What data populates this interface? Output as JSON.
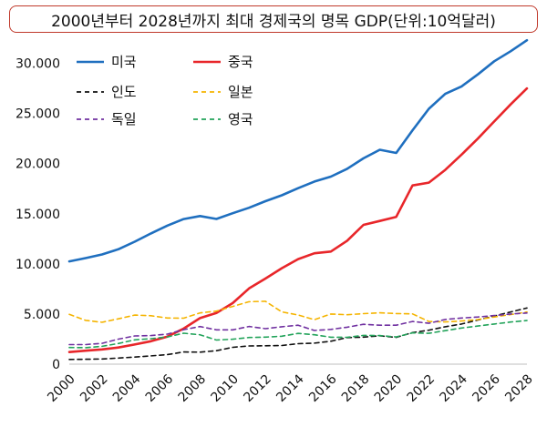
{
  "chart_data": {
    "type": "line",
    "title": "2000년부터 2028년까지 최대 경제국의 명목 GDP(단위:10억달러)",
    "xlabel": "",
    "ylabel": "",
    "ylim": [
      0,
      32500
    ],
    "yticks": [
      0,
      5000,
      10000,
      15000,
      20000,
      25000,
      30000
    ],
    "ytick_labels": [
      "0",
      "5.000",
      "10.000",
      "15.000",
      "20.000",
      "25.000",
      "30.000"
    ],
    "x": [
      2000,
      2001,
      2002,
      2003,
      2004,
      2005,
      2006,
      2007,
      2008,
      2009,
      2010,
      2011,
      2012,
      2013,
      2014,
      2015,
      2016,
      2017,
      2018,
      2019,
      2020,
      2021,
      2022,
      2023,
      2024,
      2025,
      2026,
      2027,
      2028
    ],
    "xticks": [
      2000,
      2002,
      2004,
      2006,
      2008,
      2010,
      2012,
      2014,
      2016,
      2018,
      2020,
      2022,
      2024,
      2026,
      2028
    ],
    "xtick_labels": [
      "2000",
      "2002",
      "2004",
      "2006",
      "2008",
      "2010",
      "2012",
      "2014",
      "2016",
      "2018",
      "2020",
      "2022",
      "2024",
      "2026",
      "2028"
    ],
    "grid": false,
    "legend": "top-left",
    "series": [
      {
        "name": "미국",
        "color": "#1f6fbf",
        "dash": "solid",
        "values": [
          10250,
          10580,
          10940,
          11460,
          12210,
          13040,
          13820,
          14470,
          14770,
          14480,
          15050,
          15600,
          16250,
          16840,
          17550,
          18210,
          18700,
          19480,
          20530,
          21380,
          21060,
          23320,
          25460,
          26950,
          27700,
          28900,
          30200,
          31200,
          32300
        ]
      },
      {
        "name": "중국",
        "color": "#e8262a",
        "dash": "solid",
        "values": [
          1210,
          1340,
          1470,
          1660,
          1960,
          2290,
          2750,
          3550,
          4590,
          5100,
          6090,
          7550,
          8530,
          9570,
          10480,
          11060,
          11230,
          12310,
          13890,
          14280,
          14690,
          17820,
          18100,
          19370,
          20900,
          22500,
          24200,
          25900,
          27500
        ]
      },
      {
        "name": "인도",
        "color": "#111111",
        "dash": "dashed",
        "values": [
          470,
          490,
          520,
          610,
          710,
          830,
          950,
          1220,
          1200,
          1340,
          1680,
          1820,
          1830,
          1860,
          2040,
          2100,
          2290,
          2650,
          2700,
          2830,
          2670,
          3150,
          3390,
          3730,
          4000,
          4400,
          4800,
          5200,
          5600
        ]
      },
      {
        "name": "일본",
        "color": "#f5b400",
        "dash": "dashed",
        "values": [
          4970,
          4370,
          4180,
          4520,
          4890,
          4830,
          4600,
          4580,
          5110,
          5290,
          5760,
          6230,
          6270,
          5210,
          4900,
          4440,
          5000,
          4930,
          5040,
          5120,
          5050,
          5010,
          4260,
          4210,
          4300,
          4450,
          4700,
          4950,
          5200
        ]
      },
      {
        "name": "독일",
        "color": "#7030a0",
        "dash": "dashed",
        "values": [
          1950,
          1950,
          2080,
          2500,
          2810,
          2850,
          3000,
          3440,
          3750,
          3420,
          3420,
          3760,
          3540,
          3730,
          3890,
          3360,
          3470,
          3690,
          3980,
          3890,
          3890,
          4260,
          4080,
          4460,
          4600,
          4700,
          4850,
          5000,
          5100
        ]
      },
      {
        "name": "영국",
        "color": "#22a35a",
        "dash": "dashed",
        "values": [
          1660,
          1640,
          1780,
          2060,
          2420,
          2540,
          2710,
          3090,
          2930,
          2410,
          2490,
          2660,
          2700,
          2790,
          3070,
          2930,
          2690,
          2680,
          2870,
          2850,
          2710,
          3120,
          3080,
          3340,
          3600,
          3800,
          4000,
          4200,
          4350
        ]
      }
    ]
  }
}
